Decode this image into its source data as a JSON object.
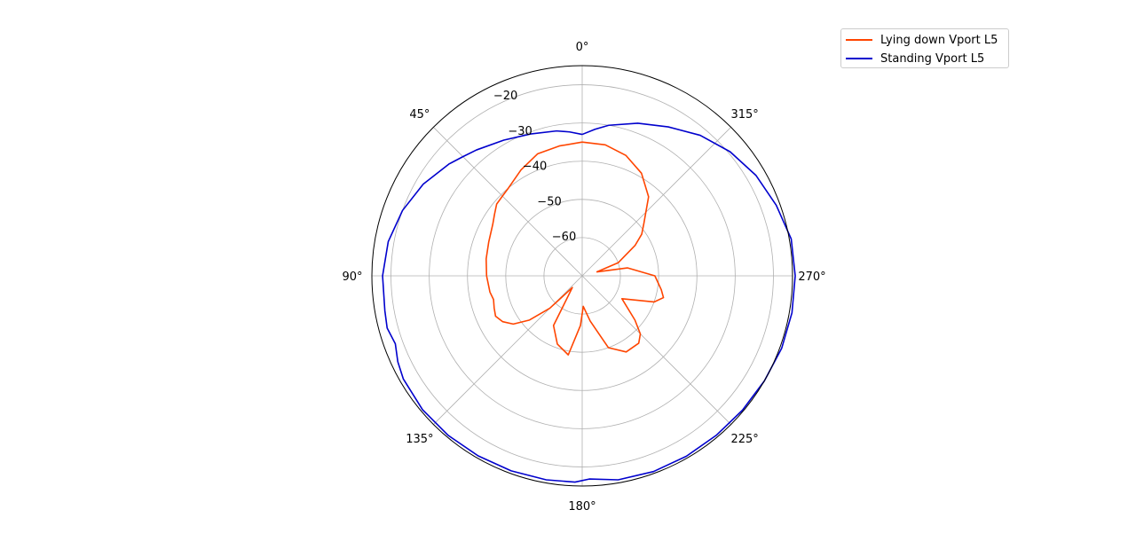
{
  "chart_data": {
    "type": "line",
    "projection": "polar",
    "theta_zero_location": "top",
    "theta_direction": "counterclockwise",
    "r_range": [
      -70,
      -15
    ],
    "r_ticks": [
      "−20",
      "−30",
      "−40",
      "−50",
      "−60"
    ],
    "r_tick_values": [
      -20,
      -30,
      -40,
      -50,
      -60
    ],
    "theta_ticks": [
      "0°",
      "45°",
      "90°",
      "135°",
      "180°",
      "225°",
      "270°",
      "315°"
    ],
    "theta_tick_values": [
      0,
      45,
      90,
      135,
      180,
      225,
      270,
      315
    ],
    "grid": true,
    "legend_position": "upper right, outside plot",
    "series": [
      {
        "name": "Lying down Vport L5",
        "color": "#ff4500",
        "theta": [
          0,
          10,
          20,
          30,
          40,
          45,
          50,
          55,
          60,
          70,
          80,
          90,
          100,
          105,
          110,
          115,
          120,
          125,
          130,
          135,
          140,
          150,
          160,
          170,
          178,
          182,
          190,
          200,
          210,
          220,
          225,
          230,
          240,
          250,
          255,
          260,
          270,
          280,
          285,
          290,
          300,
          305,
          310,
          320,
          330,
          340,
          350,
          360
        ],
        "r": [
          -35,
          -35.5,
          -36,
          -38,
          -40,
          -40.5,
          -40.8,
          -42,
          -43,
          -44,
          -44.5,
          -45,
          -45.5,
          -46,
          -45.5,
          -45,
          -46,
          -48,
          -52,
          -58,
          -66,
          -55,
          -51,
          -49,
          -57,
          -62,
          -58,
          -50,
          -47,
          -47,
          -48.5,
          -52,
          -58,
          -50,
          -48,
          -49,
          -51,
          -58,
          -66,
          -60,
          -54,
          -51,
          -49,
          -43,
          -39,
          -36.5,
          -35.2,
          -35
        ]
      },
      {
        "name": "Standing Vport L5",
        "color": "#0000cd",
        "theta": [
          0,
          5,
          10,
          20,
          30,
          40,
          45,
          50,
          60,
          70,
          80,
          90,
          100,
          105,
          110,
          115,
          120,
          130,
          140,
          150,
          160,
          170,
          178,
          182,
          190,
          200,
          210,
          220,
          230,
          240,
          250,
          260,
          270,
          280,
          290,
          300,
          310,
          320,
          330,
          340,
          350,
          355,
          360
        ],
        "r": [
          -33,
          -32.2,
          -31.5,
          -30.5,
          -29,
          -27,
          -25.9,
          -24.5,
          -22,
          -20,
          -18.5,
          -17.8,
          -17.6,
          -17.2,
          -18,
          -16.8,
          -16,
          -15.5,
          -15.5,
          -15.6,
          -15.7,
          -15.8,
          -16,
          -16.8,
          -15.8,
          -15.5,
          -15.5,
          -15.5,
          -15.3,
          -15,
          -14.5,
          -14.3,
          -14.3,
          -14.5,
          -16,
          -17.5,
          -19.5,
          -22,
          -25,
          -27.5,
          -30,
          -31.5,
          -33
        ]
      }
    ]
  }
}
